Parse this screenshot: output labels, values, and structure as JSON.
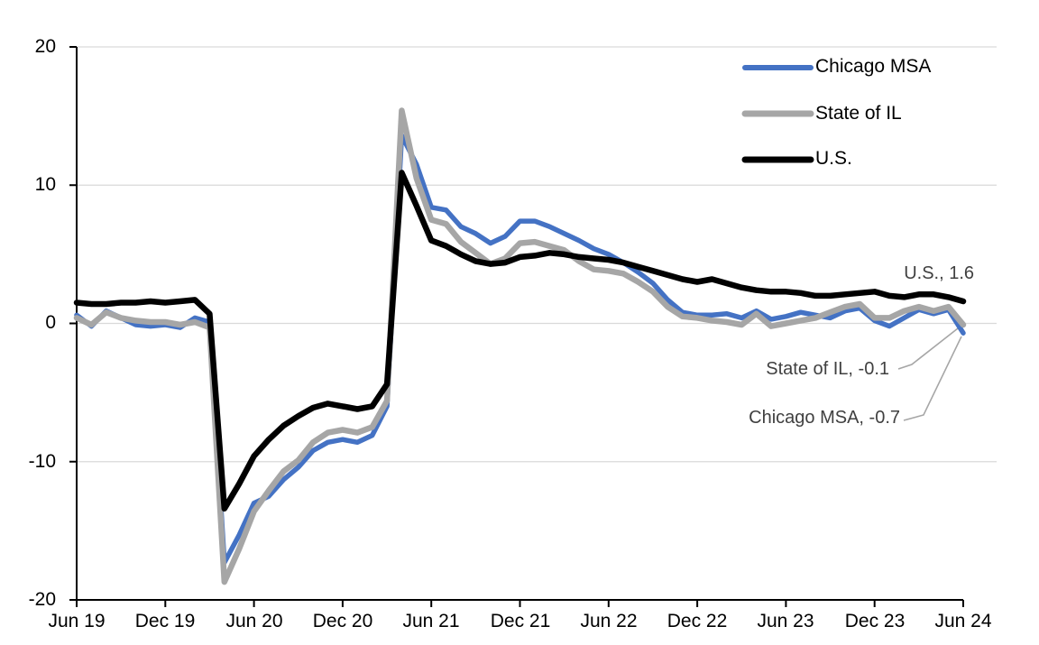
{
  "chart_data": {
    "type": "line",
    "frequency": "monthly",
    "x_start": "Jun 2019",
    "x_end": "Jun 2024",
    "xticks": [
      "Jun 19",
      "Dec 19",
      "Jun 20",
      "Dec 20",
      "Jun 21",
      "Dec 21",
      "Jun 22",
      "Dec 22",
      "Jun 23",
      "Dec 23",
      "Jun 24"
    ],
    "yticks": [
      20,
      10,
      0,
      -10,
      -20
    ],
    "ylim": [
      -20,
      20
    ],
    "grid": true,
    "legend_position": "top-right",
    "series": [
      {
        "name": "Chicago MSA",
        "color": "#4472c4",
        "values": [
          0.6,
          -0.2,
          0.9,
          0.4,
          -0.1,
          -0.2,
          -0.1,
          -0.3,
          0.4,
          0.1,
          -17.3,
          -15.3,
          -13.0,
          -12.5,
          -11.3,
          -10.4,
          -9.2,
          -8.6,
          -8.4,
          -8.6,
          -8.1,
          -6.0,
          13.6,
          11.5,
          8.4,
          8.2,
          7.0,
          6.5,
          5.8,
          6.3,
          7.4,
          7.4,
          7.0,
          6.5,
          6.0,
          5.4,
          5.0,
          4.4,
          3.7,
          2.9,
          1.7,
          0.8,
          0.6,
          0.6,
          0.7,
          0.4,
          0.9,
          0.3,
          0.5,
          0.8,
          0.6,
          0.4,
          0.9,
          1.1,
          0.2,
          -0.2,
          0.4,
          1.0,
          0.7,
          1.0,
          -0.7
        ]
      },
      {
        "name": "State of IL",
        "color": "#a6a6a6",
        "values": [
          0.4,
          -0.1,
          0.8,
          0.4,
          0.2,
          0.1,
          0.1,
          -0.1,
          0.1,
          -0.3,
          -18.7,
          -16.3,
          -13.6,
          -12.1,
          -10.7,
          -9.9,
          -8.6,
          -7.9,
          -7.7,
          -7.9,
          -7.5,
          -5.6,
          15.4,
          10.5,
          7.5,
          7.2,
          5.9,
          5.1,
          4.3,
          4.7,
          5.8,
          5.9,
          5.6,
          5.3,
          4.5,
          3.9,
          3.8,
          3.6,
          3.0,
          2.3,
          1.2,
          0.5,
          0.4,
          0.2,
          0.1,
          -0.1,
          0.7,
          -0.2,
          0.0,
          0.2,
          0.4,
          0.8,
          1.2,
          1.4,
          0.4,
          0.4,
          0.9,
          1.2,
          0.9,
          1.2,
          -0.1
        ]
      },
      {
        "name": "U.S.",
        "color": "#000000",
        "values": [
          1.5,
          1.4,
          1.4,
          1.5,
          1.5,
          1.6,
          1.5,
          1.6,
          1.7,
          0.7,
          -13.4,
          -11.6,
          -9.6,
          -8.4,
          -7.4,
          -6.7,
          -6.1,
          -5.8,
          -6.0,
          -6.2,
          -6.0,
          -4.4,
          10.9,
          8.5,
          6.0,
          5.6,
          5.0,
          4.5,
          4.3,
          4.4,
          4.8,
          4.9,
          5.1,
          5.0,
          4.8,
          4.7,
          4.6,
          4.4,
          4.1,
          3.8,
          3.5,
          3.2,
          3.0,
          3.2,
          2.9,
          2.6,
          2.4,
          2.3,
          2.3,
          2.2,
          2.0,
          2.0,
          2.1,
          2.2,
          2.3,
          2.0,
          1.9,
          2.1,
          2.1,
          1.9,
          1.6
        ]
      }
    ],
    "annotations": [
      {
        "text": "U.S., 1.6",
        "series": "U.S."
      },
      {
        "text": "State of IL, -0.1",
        "series": "State of IL"
      },
      {
        "text": "Chicago MSA, -0.7",
        "series": "Chicago MSA"
      }
    ]
  }
}
